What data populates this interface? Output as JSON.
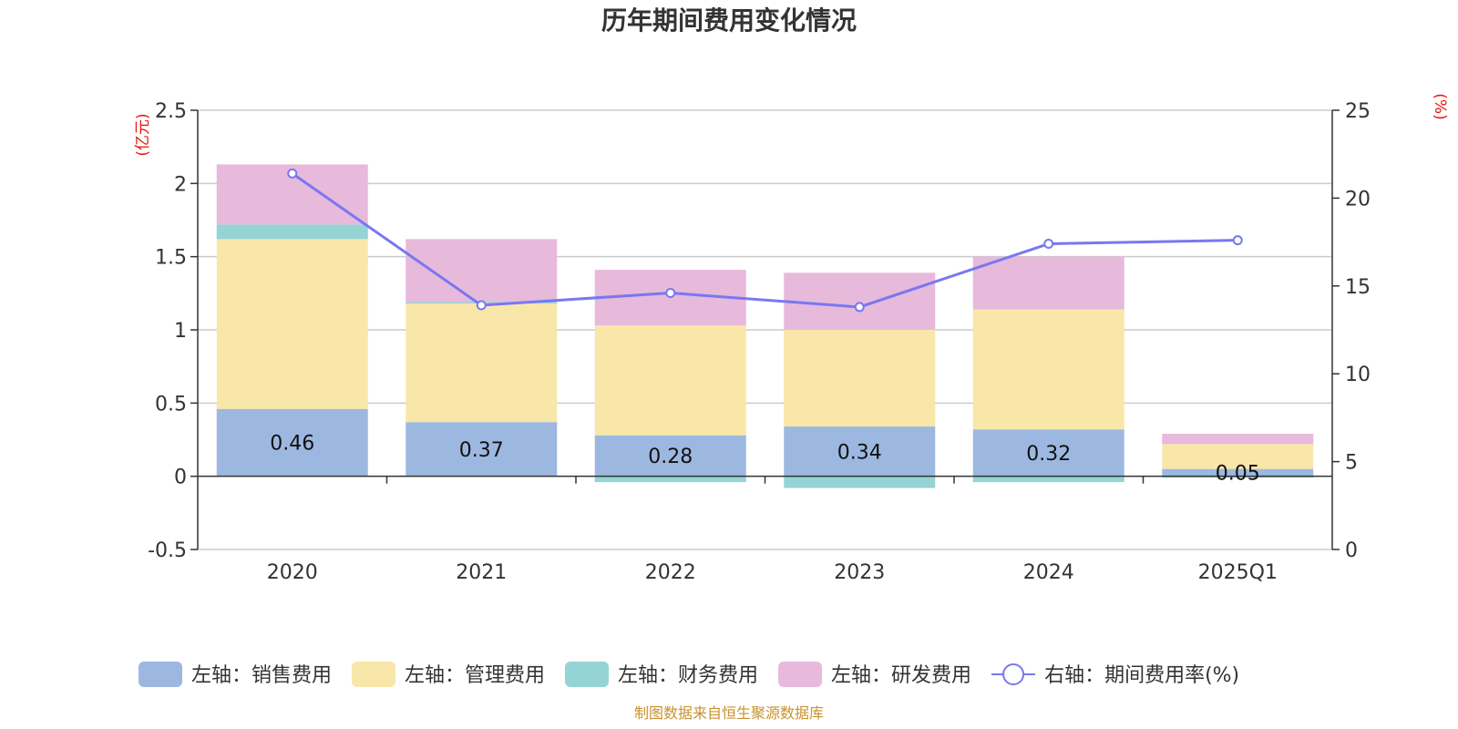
{
  "chart_data": {
    "type": "bar",
    "title": "历年期间费用变化情况",
    "categories": [
      "2020",
      "2021",
      "2022",
      "2023",
      "2024",
      "2025Q1"
    ],
    "left_axis": {
      "unit": "(亿元)",
      "ylim": [
        -0.5,
        2.5
      ],
      "ticks": [
        "-0.5",
        "0",
        "0.5",
        "1",
        "1.5",
        "2",
        "2.5"
      ],
      "tick_values": [
        -0.5,
        0,
        0.5,
        1,
        1.5,
        2,
        2.5
      ]
    },
    "right_axis": {
      "unit": "(%)",
      "ylim": [
        0,
        25
      ],
      "ticks": [
        "0",
        "5",
        "10",
        "15",
        "20",
        "25"
      ],
      "tick_values": [
        0,
        5,
        10,
        15,
        20,
        25
      ]
    },
    "series": [
      {
        "name": "左轴：销售费用",
        "axis": "left",
        "kind": "bar",
        "color": "#9db8e0",
        "values": [
          0.46,
          0.37,
          0.28,
          0.34,
          0.32,
          0.05
        ],
        "labels": [
          "0.46",
          "0.37",
          "0.28",
          "0.34",
          "0.32",
          "0.05"
        ]
      },
      {
        "name": "左轴：管理费用",
        "axis": "left",
        "kind": "bar",
        "color": "#f8e7a8",
        "values": [
          1.16,
          0.81,
          0.75,
          0.66,
          0.82,
          0.17
        ]
      },
      {
        "name": "左轴：财务费用",
        "axis": "left",
        "kind": "bar",
        "color": "#94d4d4",
        "values": [
          0.1,
          0.01,
          -0.04,
          -0.08,
          -0.04,
          -0.01
        ]
      },
      {
        "name": "左轴：研发费用",
        "axis": "left",
        "kind": "bar",
        "color": "#e7b9db",
        "values": [
          0.41,
          0.43,
          0.38,
          0.39,
          0.36,
          0.07
        ]
      },
      {
        "name": "右轴：期间费用率(%)",
        "axis": "right",
        "kind": "line",
        "color": "#7878f0",
        "values": [
          21.4,
          13.9,
          14.6,
          13.8,
          17.4,
          17.6
        ]
      }
    ],
    "legend_position": "bottom"
  },
  "source_note": "制图数据来自恒生聚源数据库",
  "colors": {
    "grid": "#cccccc",
    "axis": "#333333",
    "unit": "#e8140f",
    "source": "#c9922e"
  }
}
